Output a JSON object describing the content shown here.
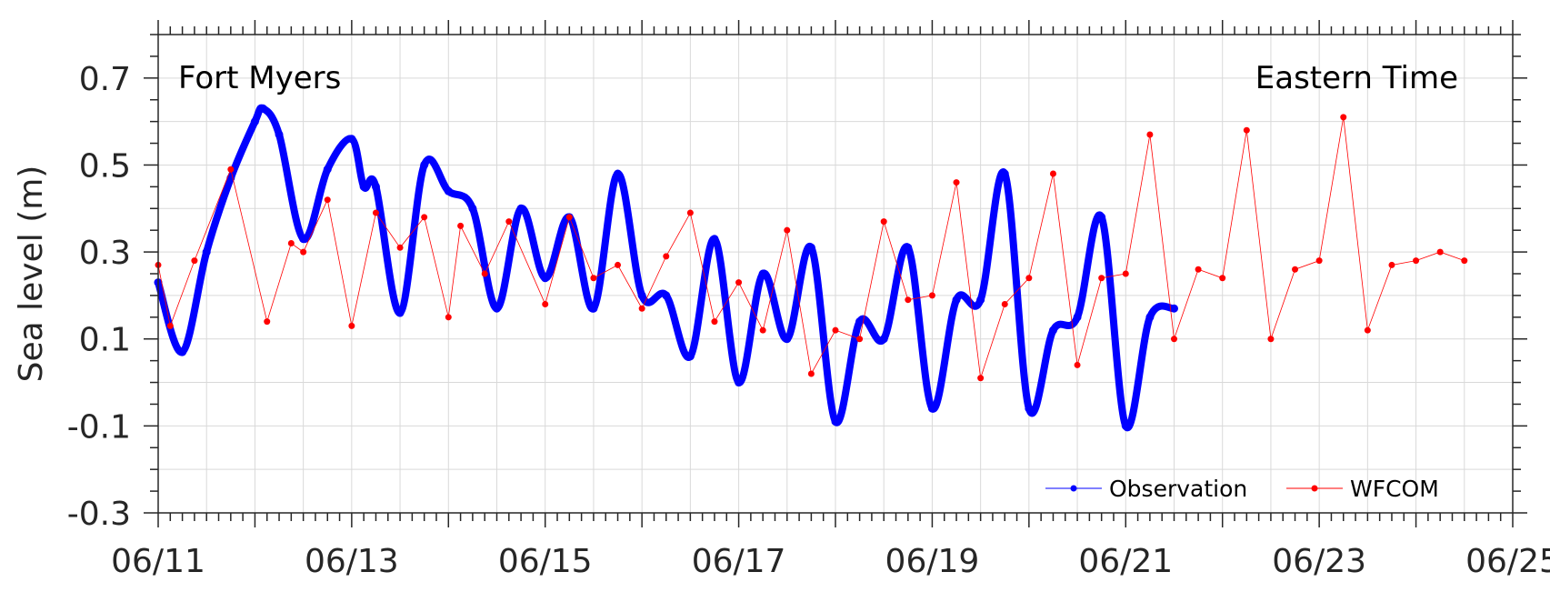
{
  "colors": {
    "observation": "#0000ff",
    "model": "#ff0000",
    "grid": "#d9d9d9",
    "axis": "#262626"
  },
  "chart_data": {
    "type": "line",
    "title": "",
    "xlabel": "",
    "ylabel": "Sea level (m)",
    "annotations": {
      "station": "Fort Myers",
      "timezone": "Eastern Time"
    },
    "xlim": [
      "06/11",
      "06/25"
    ],
    "ylim": [
      -0.3,
      0.8
    ],
    "x_tick_labels": [
      "06/11",
      "06/13",
      "06/15",
      "06/17",
      "06/19",
      "06/21",
      "06/23",
      "06/25"
    ],
    "y_tick_labels": [
      "0.7",
      "0.5",
      "0.3",
      "0.1",
      "-0.1",
      "-0.3"
    ],
    "grid": true,
    "legend": "bottom-right",
    "series": [
      {
        "name": "Observation",
        "x": [
          "06/11 00:00",
          "06/11 06:00",
          "06/11 12:00",
          "06/11 18:00",
          "06/12 00:00",
          "06/12 02:00",
          "06/12 06:00",
          "06/12 12:00",
          "06/12 18:00",
          "06/13 00:00",
          "06/13 03:00",
          "06/13 06:00",
          "06/13 12:00",
          "06/13 18:00",
          "06/14 00:00",
          "06/14 06:00",
          "06/14 12:00",
          "06/14 18:00",
          "06/15 00:00",
          "06/15 06:00",
          "06/15 12:00",
          "06/15 18:00",
          "06/16 00:00",
          "06/16 06:00",
          "06/16 12:00",
          "06/16 18:00",
          "06/17 00:00",
          "06/17 06:00",
          "06/17 12:00",
          "06/17 18:00",
          "06/18 00:00",
          "06/18 06:00",
          "06/18 12:00",
          "06/18 18:00",
          "06/19 00:00",
          "06/19 06:00",
          "06/19 12:00",
          "06/19 18:00",
          "06/20 00:00",
          "06/20 06:00",
          "06/20 12:00",
          "06/20 18:00",
          "06/21 00:00",
          "06/21 06:00",
          "06/21 12:00"
        ],
        "y": [
          0.23,
          0.07,
          0.3,
          0.47,
          0.6,
          0.63,
          0.57,
          0.33,
          0.49,
          0.56,
          0.45,
          0.45,
          0.16,
          0.5,
          0.44,
          0.4,
          0.17,
          0.4,
          0.24,
          0.38,
          0.17,
          0.48,
          0.2,
          0.2,
          0.06,
          0.33,
          0.0,
          0.25,
          0.1,
          0.31,
          -0.09,
          0.14,
          0.1,
          0.31,
          -0.06,
          0.19,
          0.19,
          0.48,
          -0.06,
          0.12,
          0.15,
          0.38,
          -0.1,
          0.15,
          0.17
        ]
      },
      {
        "name": "WFCOM",
        "x": [
          "06/11 00:00",
          "06/11 03:00",
          "06/11 09:00",
          "06/11 18:00",
          "06/12 03:00",
          "06/12 09:00",
          "06/12 12:00",
          "06/12 18:00",
          "06/13 00:00",
          "06/13 06:00",
          "06/13 12:00",
          "06/13 18:00",
          "06/14 00:00",
          "06/14 03:00",
          "06/14 09:00",
          "06/14 15:00",
          "06/15 00:00",
          "06/15 06:00",
          "06/15 12:00",
          "06/15 18:00",
          "06/16 00:00",
          "06/16 06:00",
          "06/16 12:00",
          "06/16 18:00",
          "06/17 00:00",
          "06/17 06:00",
          "06/17 12:00",
          "06/17 18:00",
          "06/18 00:00",
          "06/18 06:00",
          "06/18 12:00",
          "06/18 18:00",
          "06/19 00:00",
          "06/19 06:00",
          "06/19 12:00",
          "06/19 18:00",
          "06/20 00:00",
          "06/20 06:00",
          "06/20 12:00",
          "06/20 18:00",
          "06/21 00:00",
          "06/21 06:00",
          "06/21 12:00",
          "06/21 18:00",
          "06/22 00:00",
          "06/22 06:00",
          "06/22 12:00",
          "06/22 18:00",
          "06/23 00:00",
          "06/23 06:00",
          "06/23 12:00",
          "06/23 18:00",
          "06/24 00:00",
          "06/24 06:00",
          "06/24 12:00"
        ],
        "y": [
          0.27,
          0.13,
          0.28,
          0.49,
          0.14,
          0.32,
          0.3,
          0.42,
          0.13,
          0.39,
          0.31,
          0.38,
          0.15,
          0.36,
          0.25,
          0.37,
          0.18,
          0.38,
          0.24,
          0.27,
          0.17,
          0.29,
          0.39,
          0.14,
          0.23,
          0.12,
          0.35,
          0.02,
          0.12,
          0.1,
          0.37,
          0.19,
          0.2,
          0.46,
          0.01,
          0.18,
          0.24,
          0.48,
          0.04,
          0.24,
          0.25,
          0.57,
          0.1,
          0.26,
          0.24,
          0.58,
          0.1,
          0.26,
          0.28,
          0.61,
          0.12,
          0.27,
          0.28,
          0.3,
          0.28
        ]
      }
    ]
  }
}
